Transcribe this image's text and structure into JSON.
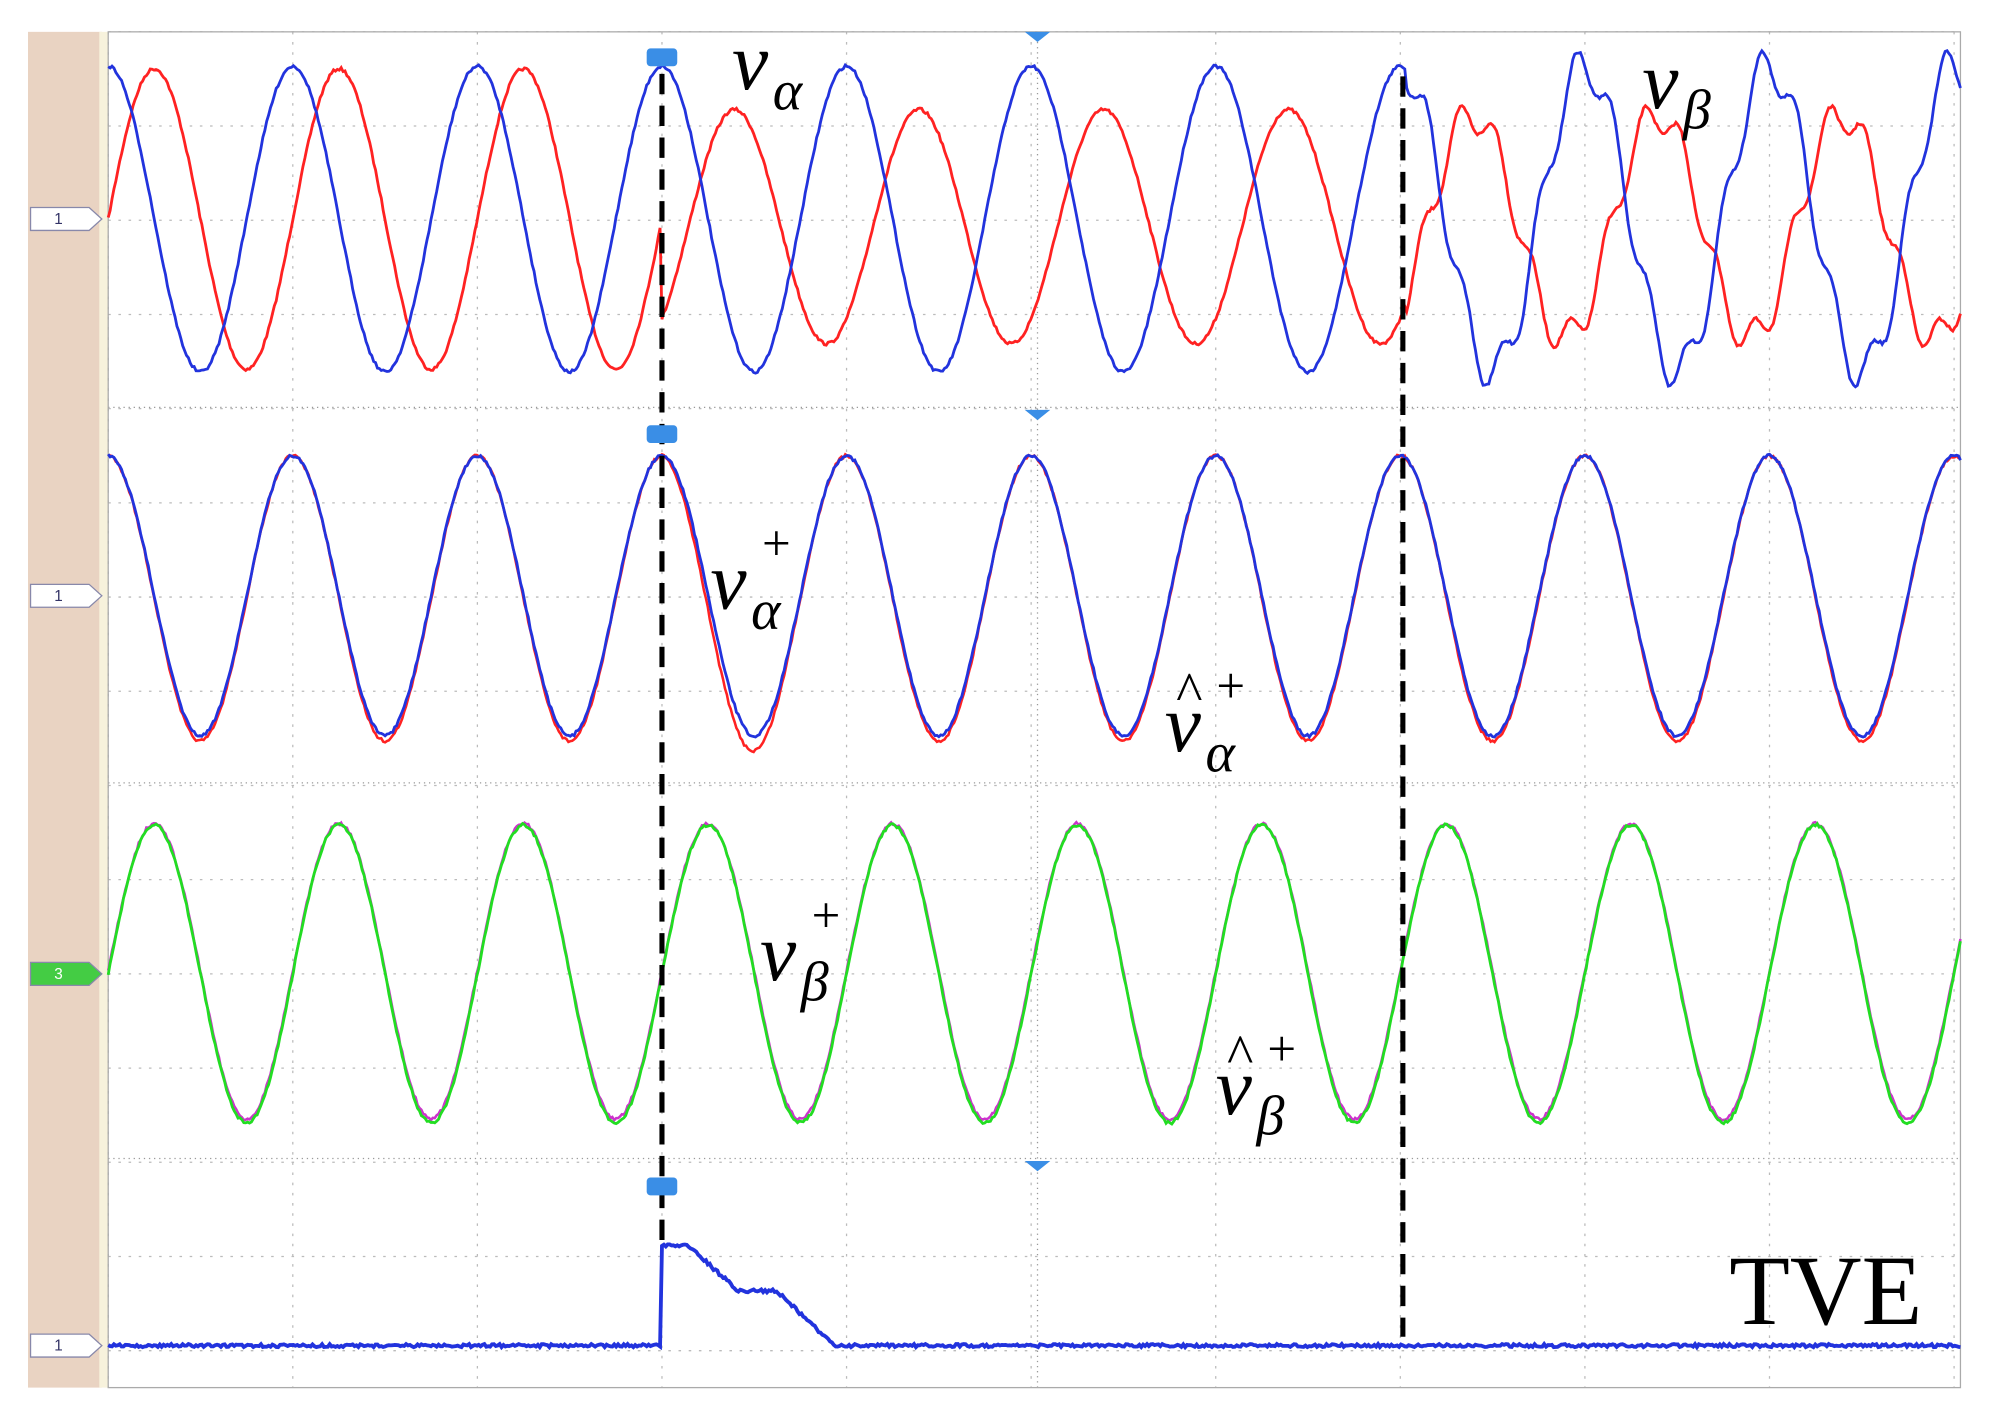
{
  "channel_markers": [
    "1",
    "1",
    "3",
    "1"
  ],
  "labels": [
    {
      "base": "v",
      "sub": "α"
    },
    {
      "base": "v",
      "sub": "β"
    },
    {
      "base": "v",
      "sup": "+",
      "sub": "α"
    },
    {
      "accent": "^",
      "base": "v",
      "sup": "+",
      "sub": "α"
    },
    {
      "base": "v",
      "sup": "+",
      "sub": "β"
    },
    {
      "accent": "^",
      "base": "v",
      "sup": "+",
      "sub": "β"
    }
  ],
  "tve_label": "TVE"
}
